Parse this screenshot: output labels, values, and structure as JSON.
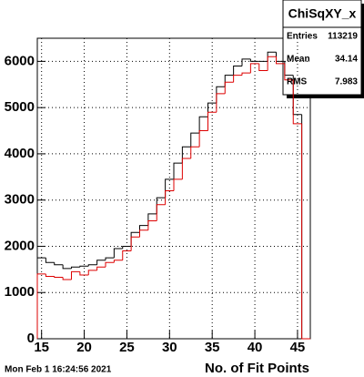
{
  "chart_data": {
    "type": "histogram",
    "x_label": "No. of Fit Points",
    "timestamp": "Mon Feb  1 16:24:56 2021",
    "bins": [
      14.5,
      15.5,
      16.5,
      17.5,
      18.5,
      19.5,
      20.5,
      21.5,
      22.5,
      23.5,
      24.5,
      25.5,
      26.5,
      27.5,
      28.5,
      29.5,
      30.5,
      31.5,
      32.5,
      33.5,
      34.5,
      35.5,
      36.5,
      37.5,
      38.5,
      39.5,
      40.5,
      41.5,
      42.5,
      43.5,
      44.5,
      45.5,
      46.5
    ],
    "series": [
      {
        "color": "#000000",
        "values": [
          1750,
          1650,
          1600,
          1520,
          1550,
          1570,
          1600,
          1700,
          1750,
          1950,
          2000,
          2300,
          2450,
          2700,
          3050,
          3450,
          3800,
          4150,
          4450,
          4800,
          5100,
          5450,
          5700,
          5900,
          6050,
          6000,
          6000,
          6200,
          6000,
          5700,
          4850,
          0
        ]
      },
      {
        "color": "#dd0000",
        "values": [
          1400,
          1350,
          1330,
          1280,
          1450,
          1380,
          1480,
          1550,
          1650,
          1700,
          1900,
          2200,
          2350,
          2550,
          2900,
          3200,
          3450,
          3900,
          4150,
          4500,
          4900,
          5300,
          5550,
          5700,
          5750,
          5950,
          5800,
          6100,
          5950,
          5600,
          4650,
          0
        ]
      }
    ],
    "xlim": [
      14.5,
      46.5
    ],
    "xticks": [
      15,
      20,
      25,
      30,
      35,
      40,
      45
    ],
    "ylim": [
      0,
      6500
    ],
    "yticks": [
      0,
      1000,
      2000,
      3000,
      4000,
      5000,
      6000
    ],
    "grid": true,
    "stats": {
      "title": "ChiSqXY_x",
      "rows": [
        {
          "label": "Entries",
          "value": 113219
        },
        {
          "label": "Mean",
          "value": 34.14
        },
        {
          "label": "RMS",
          "value": 7.983
        }
      ]
    }
  }
}
